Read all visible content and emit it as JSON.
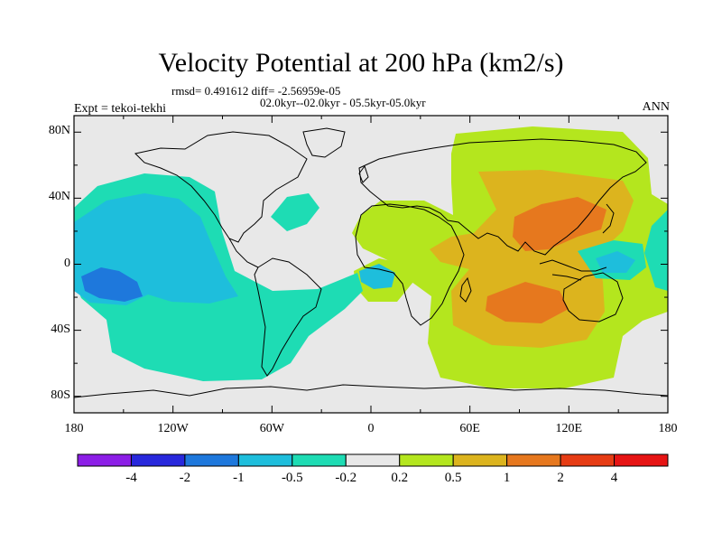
{
  "header": {
    "title": "Velocity Potential at 200 hPa (km2/s)",
    "stats": "rmsd= 0.491612 diff= -2.56959e-05",
    "period": "02.0kyr--02.0kyr - 05.5kyr-05.0kyr",
    "expt": "Expt = tekoi-tekhi",
    "season": "ANN"
  },
  "axes": {
    "y_labels": [
      "80N",
      "40N",
      "0",
      "40S",
      "80S"
    ],
    "y_values": [
      80,
      40,
      0,
      -40,
      -80
    ],
    "x_labels": [
      "180",
      "120W",
      "60W",
      "0",
      "60E",
      "120E",
      "180"
    ],
    "x_values": [
      -180,
      -120,
      -60,
      0,
      60,
      120,
      180
    ],
    "lat_range": [
      -90,
      90
    ],
    "lon_range": [
      -180,
      180
    ]
  },
  "colorbar": {
    "colors": [
      "#8c1ee6",
      "#2828dc",
      "#1e78dc",
      "#1ebedc",
      "#1edcb4",
      "#e8e8e8",
      "#b4e61e",
      "#dcb41e",
      "#e6781e",
      "#e63c14",
      "#e61414"
    ],
    "labels": [
      "-4",
      "-2",
      "-1",
      "-0.5",
      "-0.2",
      "0.2",
      "0.5",
      "1",
      "2",
      "4"
    ]
  },
  "palette": {
    "neutral": "#e8e8e8",
    "neg_weak": "#1edcb4",
    "neg_mid": "#1ebedc",
    "neg_strong": "#1e78dc",
    "pos_weak": "#b4e61e",
    "pos_mid": "#dcb41e",
    "pos_strong": "#e6781e",
    "coast": "#000000"
  }
}
